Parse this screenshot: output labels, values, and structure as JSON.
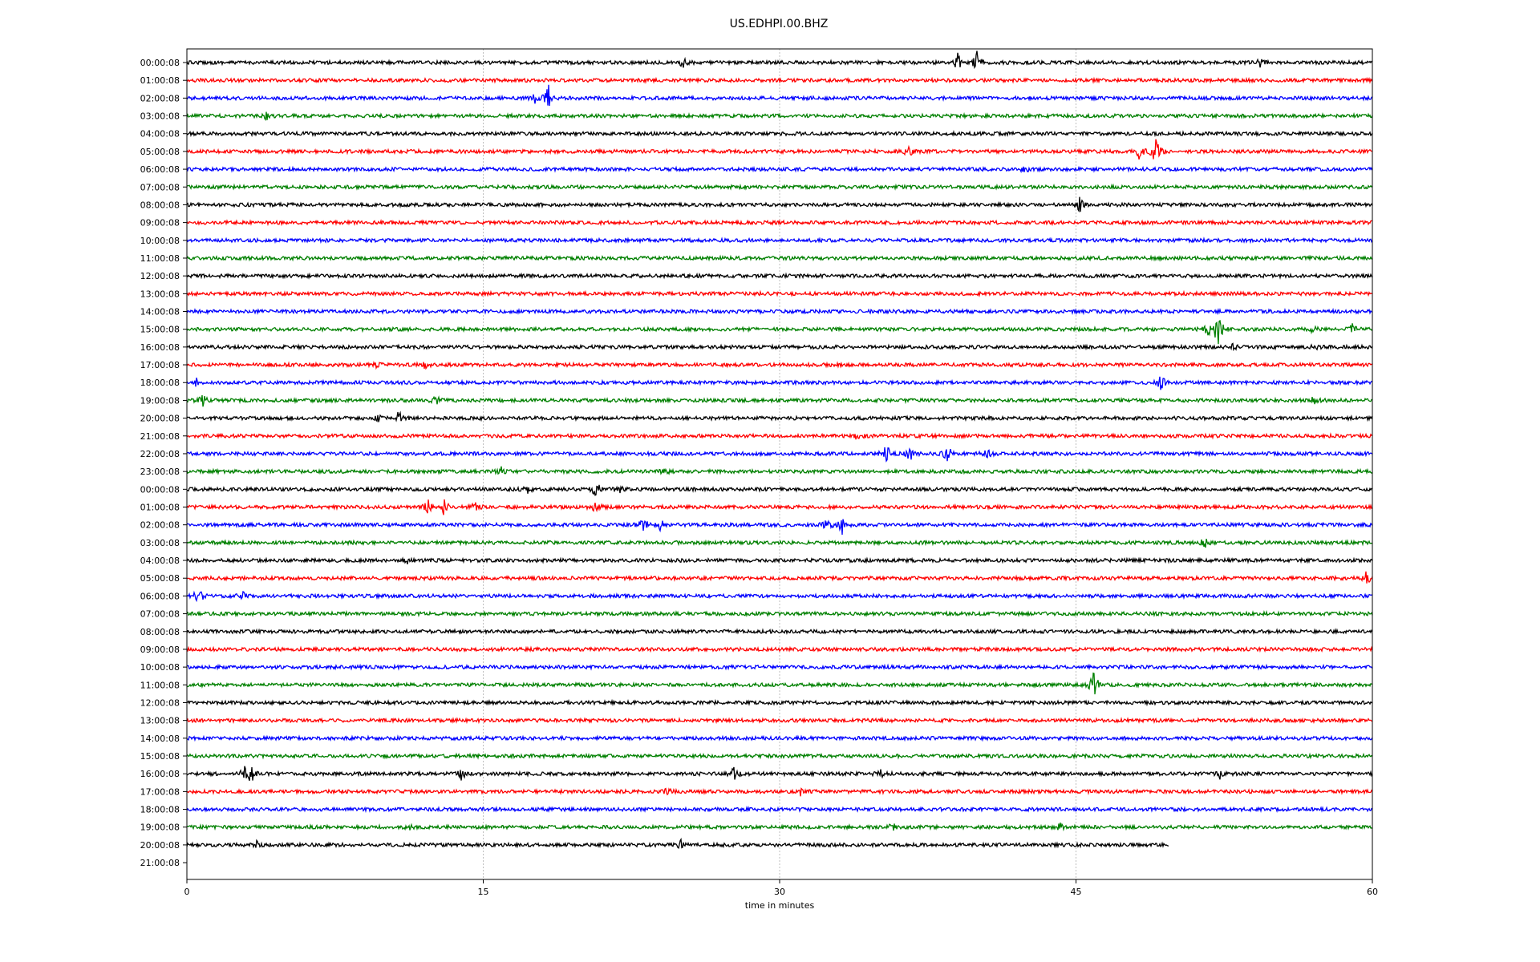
{
  "chart_data": {
    "type": "line",
    "title": "US.EDHPI.00.BHZ",
    "xlabel": "time in minutes",
    "ylabel": "",
    "xlim": [
      0,
      60
    ],
    "xticks": [
      "0",
      "15",
      "30",
      "45",
      "60"
    ],
    "xtick_values": [
      0,
      15,
      30,
      45,
      60
    ],
    "grid": "vertical",
    "trace_colors": [
      "#000000",
      "#ff0000",
      "#0000ff",
      "#008000"
    ],
    "row_labels": [
      "00:00:08",
      "01:00:08",
      "02:00:08",
      "03:00:08",
      "04:00:08",
      "05:00:08",
      "06:00:08",
      "07:00:08",
      "08:00:08",
      "09:00:08",
      "10:00:08",
      "11:00:08",
      "12:00:08",
      "13:00:08",
      "14:00:08",
      "15:00:08",
      "16:00:08",
      "17:00:08",
      "18:00:08",
      "19:00:08",
      "20:00:08",
      "21:00:08",
      "22:00:08",
      "23:00:08",
      "00:00:08",
      "01:00:08",
      "02:00:08",
      "03:00:08",
      "04:00:08",
      "05:00:08",
      "06:00:08",
      "07:00:08",
      "08:00:08",
      "09:00:08",
      "10:00:08",
      "11:00:08",
      "12:00:08",
      "13:00:08",
      "14:00:08",
      "15:00:08",
      "16:00:08",
      "17:00:08",
      "18:00:08",
      "19:00:08",
      "20:00:08",
      "21:00:08"
    ],
    "trace_end_minutes": {
      "44": 49.7,
      "45": 0
    },
    "events": [
      {
        "row": 0,
        "minute": 25.1,
        "amp": 6
      },
      {
        "row": 0,
        "minute": 39.0,
        "amp": 12
      },
      {
        "row": 0,
        "minute": 40.0,
        "amp": -16
      },
      {
        "row": 0,
        "minute": 54.3,
        "amp": -5
      },
      {
        "row": 2,
        "minute": 18.3,
        "amp": 16
      },
      {
        "row": 2,
        "minute": 17.6,
        "amp": 7
      },
      {
        "row": 3,
        "minute": 4.0,
        "amp": 5
      },
      {
        "row": 5,
        "minute": 36.5,
        "amp": 9
      },
      {
        "row": 5,
        "minute": 48.2,
        "amp": 9
      },
      {
        "row": 5,
        "minute": 49.0,
        "amp": 28
      },
      {
        "row": 6,
        "minute": 42.4,
        "amp": -5
      },
      {
        "row": 8,
        "minute": 45.2,
        "amp": 9
      },
      {
        "row": 15,
        "minute": 52.2,
        "amp": 28
      },
      {
        "row": 15,
        "minute": 51.7,
        "amp": 10
      },
      {
        "row": 15,
        "minute": 57.0,
        "amp": 5
      },
      {
        "row": 15,
        "minute": 59.0,
        "amp": 6
      },
      {
        "row": 16,
        "minute": 53.0,
        "amp": 5
      },
      {
        "row": 16,
        "minute": 57.1,
        "amp": 5
      },
      {
        "row": 17,
        "minute": 12.0,
        "amp": 6
      },
      {
        "row": 17,
        "minute": 9.6,
        "amp": 4
      },
      {
        "row": 18,
        "minute": 0.5,
        "amp": 5
      },
      {
        "row": 18,
        "minute": 49.3,
        "amp": -12
      },
      {
        "row": 19,
        "minute": 0.8,
        "amp": 7
      },
      {
        "row": 19,
        "minute": 12.6,
        "amp": 6
      },
      {
        "row": 19,
        "minute": 57.1,
        "amp": 7
      },
      {
        "row": 20,
        "minute": 10.7,
        "amp": -10
      },
      {
        "row": 20,
        "minute": 9.7,
        "amp": 5
      },
      {
        "row": 21,
        "minute": 34.0,
        "amp": 7
      },
      {
        "row": 22,
        "minute": 35.4,
        "amp": 13
      },
      {
        "row": 22,
        "minute": 36.6,
        "amp": 9
      },
      {
        "row": 22,
        "minute": 38.5,
        "amp": 12
      },
      {
        "row": 22,
        "minute": 40.5,
        "amp": 8
      },
      {
        "row": 23,
        "minute": 15.9,
        "amp": 5
      },
      {
        "row": 23,
        "minute": 24.2,
        "amp": 4
      },
      {
        "row": 24,
        "minute": 20.7,
        "amp": 13
      },
      {
        "row": 24,
        "minute": 21.9,
        "amp": 6
      },
      {
        "row": 24,
        "minute": 17.2,
        "amp": 5
      },
      {
        "row": 25,
        "minute": 12.2,
        "amp": 9
      },
      {
        "row": 25,
        "minute": 13.0,
        "amp": 12
      },
      {
        "row": 25,
        "minute": 14.6,
        "amp": 8
      },
      {
        "row": 25,
        "minute": 20.7,
        "amp": 9
      },
      {
        "row": 26,
        "minute": 23.1,
        "amp": 11
      },
      {
        "row": 26,
        "minute": 24.0,
        "amp": 8
      },
      {
        "row": 26,
        "minute": 33.2,
        "amp": 15
      },
      {
        "row": 26,
        "minute": 32.4,
        "amp": 9
      },
      {
        "row": 27,
        "minute": 51.5,
        "amp": -7
      },
      {
        "row": 28,
        "minute": 11.2,
        "amp": 4
      },
      {
        "row": 29,
        "minute": 59.7,
        "amp": 11
      },
      {
        "row": 30,
        "minute": 0.6,
        "amp": 14
      },
      {
        "row": 30,
        "minute": 2.8,
        "amp": 7
      },
      {
        "row": 35,
        "minute": 45.9,
        "amp": 22
      },
      {
        "row": 40,
        "minute": 3.3,
        "amp": 16
      },
      {
        "row": 40,
        "minute": 2.9,
        "amp": 8
      },
      {
        "row": 40,
        "minute": 13.9,
        "amp": -8
      },
      {
        "row": 40,
        "minute": 27.7,
        "amp": 9
      },
      {
        "row": 40,
        "minute": 35.1,
        "amp": 5
      },
      {
        "row": 40,
        "minute": 52.3,
        "amp": 6
      },
      {
        "row": 41,
        "minute": 24.3,
        "amp": -5
      },
      {
        "row": 41,
        "minute": 31.1,
        "amp": -6
      },
      {
        "row": 43,
        "minute": 11.2,
        "amp": 4
      },
      {
        "row": 43,
        "minute": 35.7,
        "amp": 6
      },
      {
        "row": 43,
        "minute": 44.2,
        "amp": -4
      },
      {
        "row": 44,
        "minute": 3.5,
        "amp": 6
      },
      {
        "row": 44,
        "minute": 25.0,
        "amp": -6
      }
    ]
  }
}
